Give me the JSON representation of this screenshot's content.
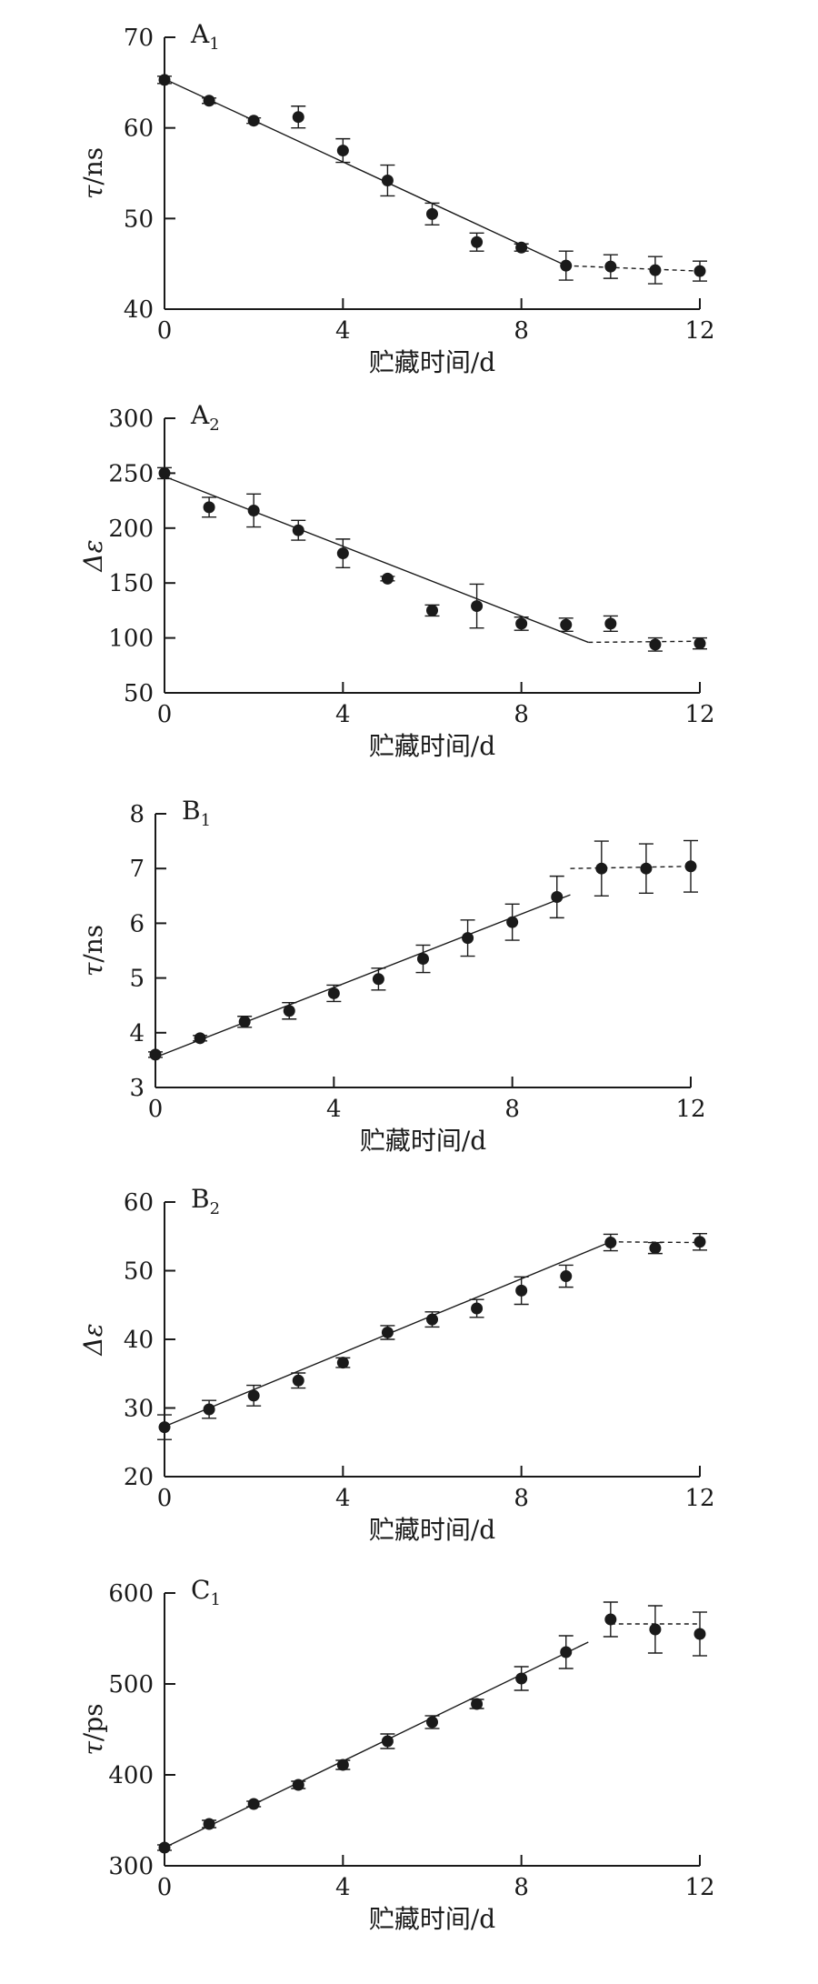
{
  "chart_data": [
    {
      "type": "scatter",
      "panel_label": "A",
      "panel_sub": "1",
      "ylabel_sym": "τ",
      "ylabel_unit": "/ns",
      "xlabel": "贮藏时间/d",
      "xlim": [
        0,
        12
      ],
      "ylim": [
        40,
        70
      ],
      "xticks": [
        0,
        4,
        8,
        12
      ],
      "yticks": [
        40,
        50,
        60,
        70
      ],
      "series": [
        {
          "x": [
            0,
            1,
            2,
            3,
            4,
            5,
            6,
            7,
            8,
            9,
            10,
            11,
            12
          ],
          "y": [
            65.3,
            63.0,
            60.8,
            61.2,
            57.5,
            54.2,
            50.5,
            47.4,
            46.8,
            44.8,
            44.7,
            44.3,
            44.2
          ],
          "err": [
            0.4,
            0.3,
            0.3,
            1.2,
            1.3,
            1.7,
            1.2,
            1.0,
            0.4,
            1.6,
            1.3,
            1.5,
            1.1
          ]
        }
      ],
      "trend_solid": [
        [
          0,
          65.4
        ],
        [
          9,
          44.8
        ]
      ],
      "trend_dashed": [
        [
          9,
          44.8
        ],
        [
          12,
          44.2
        ]
      ]
    },
    {
      "type": "scatter",
      "panel_label": "A",
      "panel_sub": "2",
      "ylabel_sym": "Δε",
      "ylabel_unit": "",
      "xlabel": "贮藏时间/d",
      "xlim": [
        0,
        12
      ],
      "ylim": [
        50,
        300
      ],
      "xticks": [
        0,
        4,
        8,
        12
      ],
      "yticks": [
        50,
        100,
        150,
        200,
        250,
        300
      ],
      "series": [
        {
          "x": [
            0,
            1,
            2,
            3,
            4,
            5,
            6,
            7,
            8,
            9,
            10,
            11,
            12
          ],
          "y": [
            250,
            219,
            216,
            198,
            177,
            154,
            125,
            129,
            113,
            112,
            113,
            94,
            95
          ],
          "err": [
            5,
            9,
            15,
            9,
            13,
            2,
            5,
            20,
            6,
            6,
            7,
            6,
            5
          ]
        }
      ],
      "trend_solid": [
        [
          0,
          247
        ],
        [
          9.5,
          96
        ]
      ],
      "trend_dashed": [
        [
          9.5,
          96
        ],
        [
          12,
          97
        ]
      ]
    },
    {
      "type": "scatter",
      "panel_label": "B",
      "panel_sub": "1",
      "ylabel_sym": "τ",
      "ylabel_unit": "/ns",
      "xlabel": "贮藏时间/d",
      "xlim": [
        0,
        12
      ],
      "ylim": [
        3,
        8
      ],
      "xticks": [
        0,
        4,
        8,
        12
      ],
      "yticks": [
        3,
        4,
        5,
        6,
        7,
        8
      ],
      "series": [
        {
          "x": [
            0,
            1,
            2,
            3,
            4,
            5,
            6,
            7,
            8,
            9,
            10,
            11,
            12
          ],
          "y": [
            3.6,
            3.9,
            4.2,
            4.4,
            4.72,
            4.98,
            5.35,
            5.73,
            6.02,
            6.48,
            7.0,
            7.0,
            7.04
          ],
          "err": [
            0.05,
            0.05,
            0.1,
            0.15,
            0.15,
            0.2,
            0.25,
            0.33,
            0.33,
            0.38,
            0.5,
            0.45,
            0.47
          ]
        }
      ],
      "trend_solid": [
        [
          0,
          3.55
        ],
        [
          9.3,
          6.52
        ]
      ],
      "trend_dashed": [
        [
          9.3,
          7.0
        ],
        [
          12,
          7.04
        ]
      ]
    },
    {
      "type": "scatter",
      "panel_label": "B",
      "panel_sub": "2",
      "ylabel_sym": "Δε",
      "ylabel_unit": "",
      "xlabel": "贮藏时间/d",
      "xlim": [
        0,
        12
      ],
      "ylim": [
        20,
        60
      ],
      "xticks": [
        0,
        4,
        8,
        12
      ],
      "yticks": [
        20,
        30,
        40,
        50,
        60
      ],
      "series": [
        {
          "x": [
            0,
            1,
            2,
            3,
            4,
            5,
            6,
            7,
            8,
            9,
            10,
            11,
            12
          ],
          "y": [
            27.2,
            29.8,
            31.8,
            34.0,
            36.6,
            41.0,
            42.9,
            44.5,
            47.1,
            49.2,
            54.1,
            53.3,
            54.2
          ],
          "err": [
            1.8,
            1.3,
            1.5,
            1.1,
            0.7,
            1.0,
            1.1,
            1.3,
            2.0,
            1.6,
            1.2,
            0.8,
            1.2
          ]
        }
      ],
      "trend_solid": [
        [
          0,
          27.3
        ],
        [
          10,
          54.2
        ]
      ],
      "trend_dashed": [
        [
          10,
          54.2
        ],
        [
          12,
          54.1
        ]
      ]
    },
    {
      "type": "scatter",
      "panel_label": "C",
      "panel_sub": "1",
      "ylabel_sym": "τ",
      "ylabel_unit": "/ps",
      "xlabel": "贮藏时间/d",
      "xlim": [
        0,
        12
      ],
      "ylim": [
        300,
        600
      ],
      "xticks": [
        0,
        4,
        8,
        12
      ],
      "yticks": [
        300,
        400,
        500,
        600
      ],
      "series": [
        {
          "x": [
            0,
            1,
            2,
            3,
            4,
            5,
            6,
            7,
            8,
            9,
            10,
            11,
            12
          ],
          "y": [
            320,
            346,
            368,
            389,
            411,
            437,
            458,
            478,
            506,
            535,
            571,
            560,
            555
          ],
          "err": [
            3,
            4,
            3,
            4,
            5,
            8,
            7,
            5,
            13,
            18,
            19,
            26,
            24
          ]
        }
      ],
      "trend_solid": [
        [
          0,
          320
        ],
        [
          9.5,
          546
        ]
      ],
      "trend_dashed": [
        [
          10,
          566
        ],
        [
          12,
          566
        ]
      ]
    }
  ]
}
